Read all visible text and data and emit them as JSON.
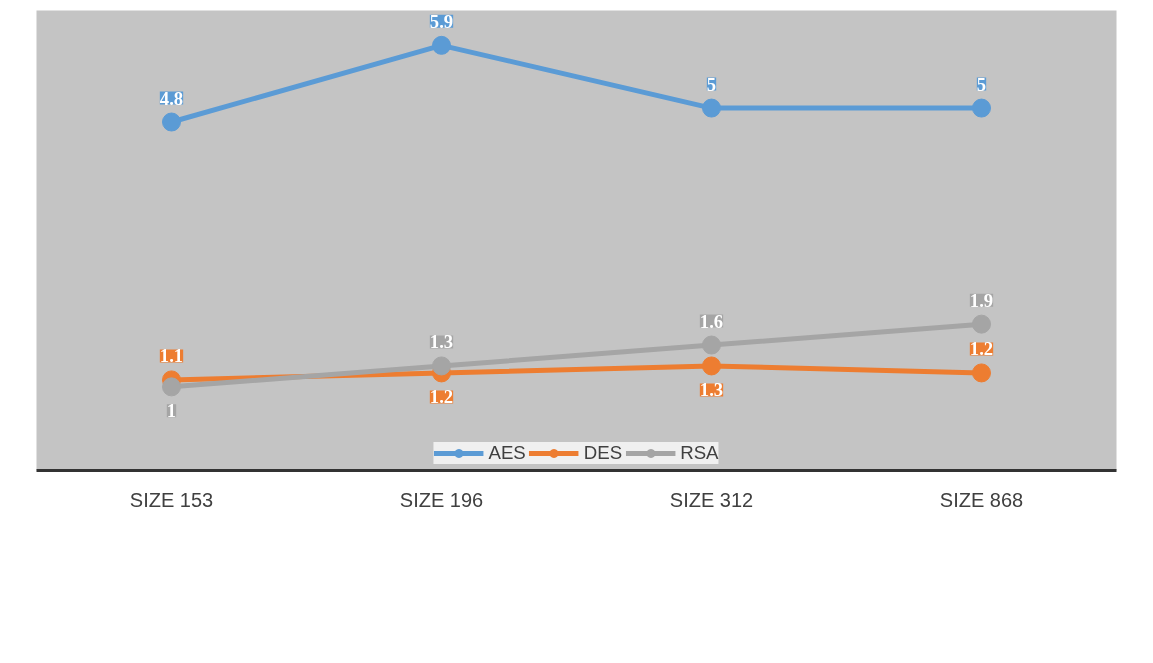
{
  "chart_data": {
    "type": "line",
    "categories": [
      "SIZE 153",
      "SIZE 196",
      "SIZE 312",
      "SIZE 868"
    ],
    "series": [
      {
        "name": "AES",
        "color": "#5b9bd5",
        "values": [
          4.8,
          5.9,
          5,
          5
        ]
      },
      {
        "name": "DES",
        "color": "#ed7d31",
        "values": [
          1.1,
          1.2,
          1.3,
          1.2
        ]
      },
      {
        "name": "RSA",
        "color": "#a5a5a5",
        "values": [
          1,
          1.3,
          1.6,
          1.9
        ]
      }
    ],
    "ylim": [
      -0.2,
      6.4
    ],
    "tick_labels": "x",
    "data_labels": true,
    "grid": false,
    "legend": "bottom",
    "marker": "circle",
    "line_style": "solid"
  }
}
